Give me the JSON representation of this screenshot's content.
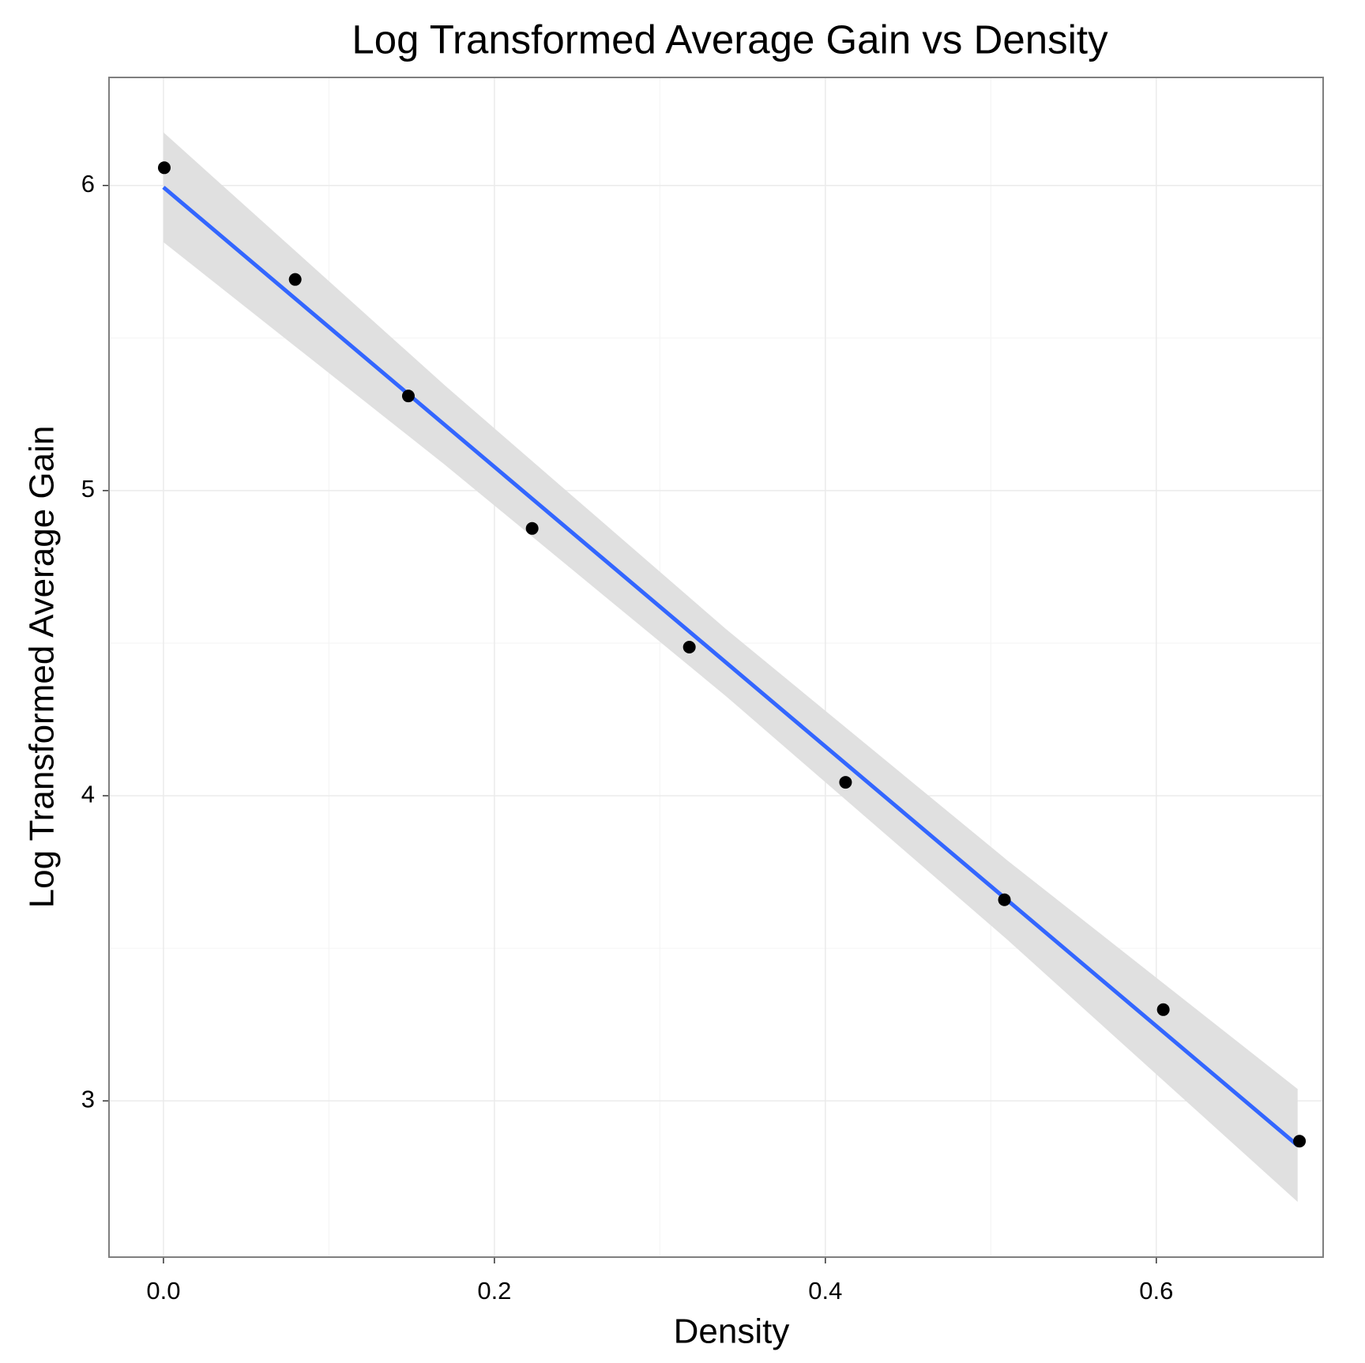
{
  "chart_data": {
    "type": "scatter",
    "title": "Log Transformed Average Gain vs Density",
    "x_label": "Density",
    "y_label": "Log Transformed Average Gain",
    "points": {
      "color": "#000000",
      "x": [
        0.0005,
        0.0796,
        0.148,
        0.2228,
        0.3178,
        0.4122,
        0.5082,
        0.6042,
        0.6865
      ],
      "y": [
        6.058,
        5.692,
        5.31,
        4.876,
        4.487,
        4.044,
        3.659,
        3.299,
        2.868
      ]
    },
    "fit": {
      "color": "#3366ff",
      "x": [
        0,
        0.6854
      ],
      "y": [
        5.994,
        2.854
      ]
    },
    "band": {
      "color": "#e0e0e0",
      "x": [
        0,
        0.17,
        0.34,
        0.51,
        0.6854
      ],
      "lower": [
        5.814,
        5.085,
        4.326,
        3.528,
        2.669
      ],
      "upper": [
        6.174,
        5.345,
        4.546,
        3.788,
        3.039
      ]
    },
    "xlim": [
      -0.0329,
      0.7008
    ],
    "ylim": [
      2.488,
      6.354
    ],
    "xticks": [
      {
        "value": 0,
        "label": "0.0"
      },
      0.2,
      0.4,
      0.6
    ],
    "yticks": [
      3,
      4,
      5,
      6
    ],
    "xminor": [
      0.1,
      0.3,
      0.5
    ],
    "yminor": [
      3.5,
      4.5,
      5.5
    ],
    "grid": true
  }
}
